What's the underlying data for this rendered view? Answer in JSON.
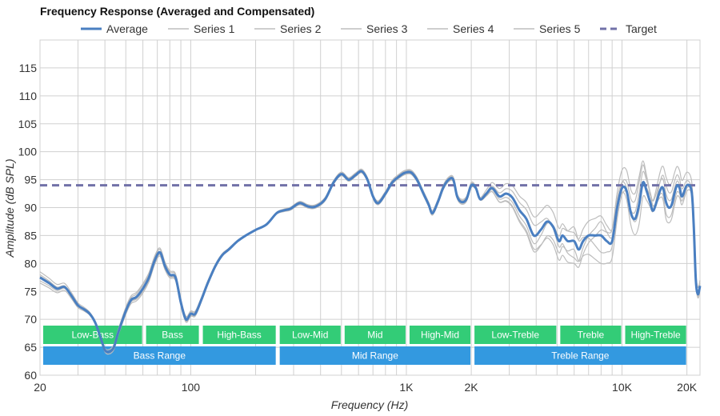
{
  "chart_data": {
    "type": "line",
    "title": "Frequency Response (Averaged and Compensated)",
    "xlabel": "Frequency (Hz)",
    "ylabel": "Amplitude (dB SPL)",
    "x_scale": "log",
    "xlim": [
      20,
      23000
    ],
    "ylim": [
      60,
      120
    ],
    "x_tick_labels": [
      {
        "value": 20,
        "label": "20"
      },
      {
        "value": 100,
        "label": "100"
      },
      {
        "value": 1000,
        "label": "1K"
      },
      {
        "value": 2000,
        "label": "2K"
      },
      {
        "value": 10000,
        "label": "10K"
      },
      {
        "value": 20000,
        "label": "20K"
      }
    ],
    "y_ticks": [
      60,
      65,
      70,
      75,
      80,
      85,
      90,
      95,
      100,
      105,
      110,
      115
    ],
    "grid": true,
    "legend_position": "top",
    "colors": {
      "average": "#4a7fc1",
      "series": "#bdbdbd",
      "target": "#7171a8",
      "bands_green": "#33cc77",
      "bands_blue": "#3399e0",
      "grid": "#d0d0d0"
    },
    "target_value": 94,
    "legend": [
      {
        "name": "Average",
        "style": "average"
      },
      {
        "name": "Series 1",
        "style": "series"
      },
      {
        "name": "Series 2",
        "style": "series"
      },
      {
        "name": "Series 3",
        "style": "series"
      },
      {
        "name": "Series 4",
        "style": "series"
      },
      {
        "name": "Series 5",
        "style": "series"
      },
      {
        "name": "Target",
        "style": "target"
      }
    ],
    "average": [
      [
        20,
        77.5
      ],
      [
        22,
        76.5
      ],
      [
        24,
        75.5
      ],
      [
        26,
        75.8
      ],
      [
        28,
        74.2
      ],
      [
        30,
        72.5
      ],
      [
        32,
        71.8
      ],
      [
        34,
        71.0
      ],
      [
        36,
        69.5
      ],
      [
        38,
        67.0
      ],
      [
        40,
        64.5
      ],
      [
        42,
        64.2
      ],
      [
        44,
        65.0
      ],
      [
        46,
        67.5
      ],
      [
        50,
        71.5
      ],
      [
        53,
        73.5
      ],
      [
        56,
        74.0
      ],
      [
        60,
        75.5
      ],
      [
        64,
        77.5
      ],
      [
        68,
        80.5
      ],
      [
        72,
        82.0
      ],
      [
        76,
        79.5
      ],
      [
        80,
        78.0
      ],
      [
        85,
        77.5
      ],
      [
        90,
        73.0
      ],
      [
        95,
        70.0
      ],
      [
        100,
        71.0
      ],
      [
        105,
        71.0
      ],
      [
        112,
        73.5
      ],
      [
        120,
        76.5
      ],
      [
        130,
        79.5
      ],
      [
        140,
        81.5
      ],
      [
        150,
        82.5
      ],
      [
        165,
        84.0
      ],
      [
        180,
        85.0
      ],
      [
        200,
        86.0
      ],
      [
        225,
        87.0
      ],
      [
        250,
        89.0
      ],
      [
        270,
        89.5
      ],
      [
        290,
        89.8
      ],
      [
        320,
        90.8
      ],
      [
        350,
        90.2
      ],
      [
        380,
        90.2
      ],
      [
        420,
        91.5
      ],
      [
        460,
        94.5
      ],
      [
        500,
        96.0
      ],
      [
        540,
        95.0
      ],
      [
        580,
        95.8
      ],
      [
        620,
        96.5
      ],
      [
        660,
        95.0
      ],
      [
        700,
        92.0
      ],
      [
        740,
        90.8
      ],
      [
        800,
        92.5
      ],
      [
        860,
        94.5
      ],
      [
        920,
        95.5
      ],
      [
        980,
        96.2
      ],
      [
        1050,
        96.3
      ],
      [
        1120,
        95.0
      ],
      [
        1200,
        92.5
      ],
      [
        1270,
        90.5
      ],
      [
        1320,
        89.0
      ],
      [
        1400,
        91.0
      ],
      [
        1480,
        93.5
      ],
      [
        1570,
        95.0
      ],
      [
        1650,
        95.0
      ],
      [
        1720,
        92.0
      ],
      [
        1800,
        91.0
      ],
      [
        1900,
        91.5
      ],
      [
        2000,
        94.0
      ],
      [
        2100,
        93.5
      ],
      [
        2200,
        91.5
      ],
      [
        2350,
        92.5
      ],
      [
        2500,
        93.5
      ],
      [
        2700,
        92.0
      ],
      [
        2900,
        92.5
      ],
      [
        3100,
        91.8
      ],
      [
        3350,
        89.5
      ],
      [
        3600,
        88.0
      ],
      [
        3900,
        85.0
      ],
      [
        4200,
        86.0
      ],
      [
        4500,
        87.5
      ],
      [
        4800,
        86.5
      ],
      [
        5100,
        84.0
      ],
      [
        5300,
        85.0
      ],
      [
        5600,
        84.0
      ],
      [
        6000,
        84.0
      ],
      [
        6300,
        82.5
      ],
      [
        6600,
        84.0
      ],
      [
        7000,
        85.0
      ],
      [
        7500,
        85.0
      ],
      [
        8000,
        85.0
      ],
      [
        8500,
        84.0
      ],
      [
        9000,
        84.0
      ],
      [
        9500,
        90.0
      ],
      [
        10000,
        93.5
      ],
      [
        10500,
        93.0
      ],
      [
        11000,
        89.0
      ],
      [
        11500,
        88.0
      ],
      [
        12000,
        90.5
      ],
      [
        12500,
        94.5
      ],
      [
        13000,
        93.0
      ],
      [
        13500,
        91.0
      ],
      [
        14000,
        89.5
      ],
      [
        15000,
        93.0
      ],
      [
        15500,
        93.5
      ],
      [
        16000,
        91.0
      ],
      [
        16500,
        90.0
      ],
      [
        17000,
        90.5
      ],
      [
        17500,
        92.5
      ],
      [
        18000,
        94.0
      ],
      [
        18500,
        93.5
      ],
      [
        19000,
        92.0
      ],
      [
        20000,
        94.0
      ],
      [
        21000,
        93.0
      ],
      [
        21500,
        87.0
      ],
      [
        22000,
        77.0
      ],
      [
        22500,
        74.5
      ],
      [
        23000,
        76.0
      ]
    ],
    "series_offsets": [
      [
        [
          20,
          1.0
        ],
        [
          60,
          -0.5
        ],
        [
          300,
          0.2
        ],
        [
          2000,
          0.3
        ],
        [
          4000,
          -1.5
        ],
        [
          6000,
          2.5
        ],
        [
          8000,
          -3.0
        ],
        [
          12000,
          4.0
        ],
        [
          16000,
          -2.0
        ],
        [
          23000,
          0.5
        ]
      ],
      [
        [
          20,
          -1.0
        ],
        [
          60,
          0.6
        ],
        [
          300,
          -0.2
        ],
        [
          2000,
          -0.4
        ],
        [
          4000,
          2.0
        ],
        [
          6000,
          -3.0
        ],
        [
          8000,
          2.5
        ],
        [
          12000,
          -3.5
        ],
        [
          16000,
          3.0
        ],
        [
          23000,
          -0.5
        ]
      ],
      [
        [
          20,
          0.5
        ],
        [
          60,
          -0.8
        ],
        [
          300,
          0.3
        ],
        [
          2000,
          0.5
        ],
        [
          4000,
          -3.0
        ],
        [
          6000,
          -1.5
        ],
        [
          8000,
          -5.0
        ],
        [
          12000,
          2.0
        ],
        [
          16000,
          1.5
        ],
        [
          23000,
          -0.8
        ]
      ],
      [
        [
          20,
          -0.6
        ],
        [
          60,
          0.9
        ],
        [
          300,
          -0.3
        ],
        [
          2000,
          -0.2
        ],
        [
          4000,
          3.5
        ],
        [
          6000,
          1.5
        ],
        [
          8000,
          3.5
        ],
        [
          12000,
          -1.0
        ],
        [
          16000,
          4.5
        ],
        [
          23000,
          1.0
        ]
      ],
      [
        [
          20,
          0.2
        ],
        [
          60,
          -0.3
        ],
        [
          300,
          0.1
        ],
        [
          2000,
          0.2
        ],
        [
          4000,
          -2.5
        ],
        [
          6000,
          -4.0
        ],
        [
          8000,
          1.0
        ],
        [
          12000,
          5.0
        ],
        [
          16000,
          -3.0
        ],
        [
          23000,
          0.2
        ]
      ]
    ],
    "bands_top": [
      {
        "label": "Low-Bass",
        "from": 20,
        "to": 60
      },
      {
        "label": "Bass",
        "from": 60,
        "to": 110
      },
      {
        "label": "High-Bass",
        "from": 110,
        "to": 250
      },
      {
        "label": "Low-Mid",
        "from": 250,
        "to": 500
      },
      {
        "label": "Mid",
        "from": 500,
        "to": 1000
      },
      {
        "label": "High-Mid",
        "from": 1000,
        "to": 2000
      },
      {
        "label": "Low-Treble",
        "from": 2000,
        "to": 5000
      },
      {
        "label": "Treble",
        "from": 5000,
        "to": 10000
      },
      {
        "label": "High-Treble",
        "from": 10000,
        "to": 20000
      }
    ],
    "bands_bottom": [
      {
        "label": "Bass Range",
        "from": 20,
        "to": 250
      },
      {
        "label": "Mid Range",
        "from": 250,
        "to": 2000
      },
      {
        "label": "Treble Range",
        "from": 2000,
        "to": 20000
      }
    ]
  }
}
